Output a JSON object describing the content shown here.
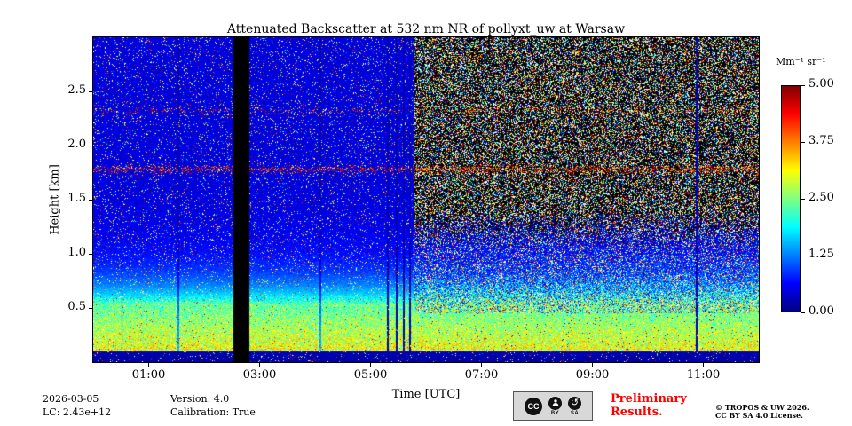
{
  "footer": {
    "date": "2026-03-05",
    "lc": "LC: 2.43e+12",
    "version": "Version: 4.0",
    "calibration": "Calibration: True",
    "preliminary_line1": "Preliminary",
    "preliminary_line2": "Results.",
    "preliminary_color": "#ff0000",
    "copyright_line1": "© TROPOS & UW 2026.",
    "copyright_line2": "CC BY SA 4.0 License."
  },
  "license_badge": {
    "cc": "CC",
    "by": "BY",
    "sa": "SA",
    "sa_icon": "↺"
  },
  "chart_data": {
    "type": "heatmap",
    "title": "Attenuated Backscatter at 532 nm NR of pollyxt_uw at Warsaw",
    "xlabel": "Time [UTC]",
    "ylabel": "Height [km]",
    "x_range": [
      0,
      12
    ],
    "x_ticks": [
      {
        "hour": 1,
        "label": "01:00"
      },
      {
        "hour": 3,
        "label": "03:00"
      },
      {
        "hour": 5,
        "label": "05:00"
      },
      {
        "hour": 7,
        "label": "07:00"
      },
      {
        "hour": 9,
        "label": "09:00"
      },
      {
        "hour": 11,
        "label": "11:00"
      }
    ],
    "y_range_km": [
      0,
      3.0
    ],
    "y_ticks_km": [
      0.5,
      1.0,
      1.5,
      2.0,
      2.5
    ],
    "y_tick_labels": [
      "0.5",
      "1.0",
      "1.5",
      "2.0",
      "2.5"
    ],
    "colorbar": {
      "label": "Mm⁻¹ sr⁻¹",
      "range": [
        0,
        5
      ],
      "ticks": [
        0.0,
        1.25,
        2.5,
        3.75,
        5.0
      ],
      "tick_labels": [
        "0.00",
        "1.25",
        "2.50",
        "3.75",
        "5.00"
      ],
      "colormap": "jet",
      "over_color": "#ffffff",
      "position": "right"
    },
    "grid": false,
    "features": {
      "seed": 42,
      "surface_aerosol_layer": {
        "top_km": 0.52,
        "peak_value": 3.0,
        "color_zone": "green-yellow"
      },
      "near_ground_dark_band_top_km": 0.1,
      "night_background_value": 0.45,
      "elevated_speckle_bands_km": [
        1.78,
        2.32
      ],
      "data_gap_hours": [
        2.53,
        2.82
      ],
      "dark_navy_columns_hours": [
        5.31,
        5.47,
        5.6,
        5.71,
        10.88
      ],
      "dim_columns_hours": [
        0.52,
        1.54,
        4.1
      ],
      "daytime_noise_start_hour": 5.78,
      "daytime_noise_base_km": 1.05
    }
  }
}
